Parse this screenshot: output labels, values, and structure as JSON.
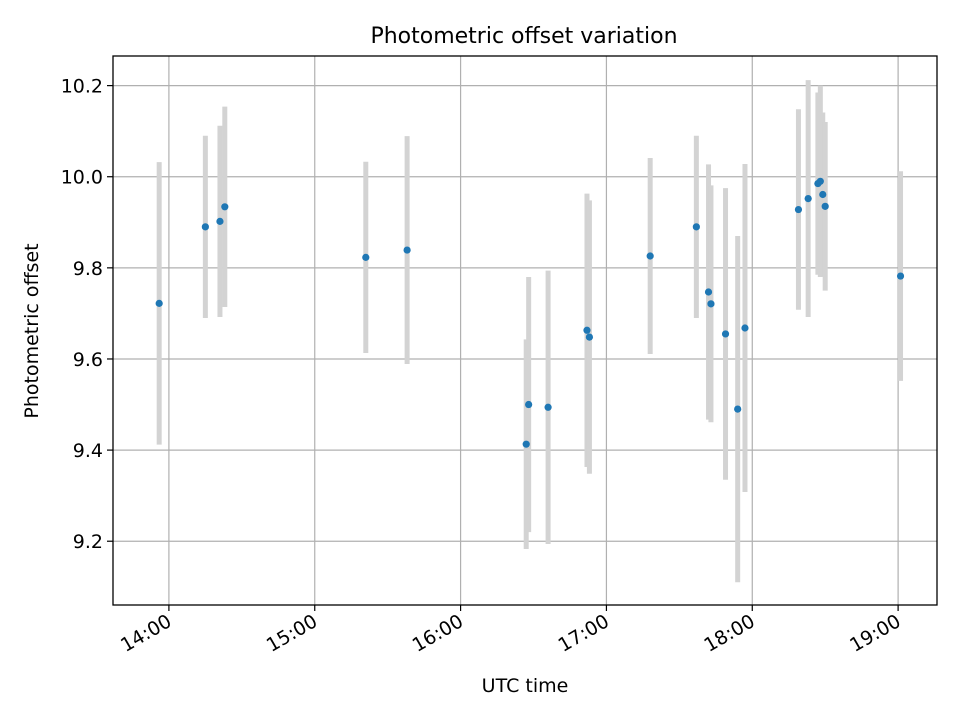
{
  "chart_data": {
    "type": "scatter",
    "title": "Photometric offset variation",
    "xlabel": "UTC time",
    "ylabel": "Photometric offset",
    "xlim": [
      "13:37",
      "19:16"
    ],
    "ylim": [
      9.06,
      10.265
    ],
    "x_ticks": [
      "14:00",
      "15:00",
      "16:00",
      "17:00",
      "18:00",
      "19:00"
    ],
    "y_ticks": [
      9.2,
      9.4,
      9.6,
      9.8,
      10.0,
      10.2
    ],
    "y_tick_labels": [
      "9.2",
      "9.4",
      "9.6",
      "9.8",
      "10.0",
      "10.2"
    ],
    "grid": true,
    "legend": false,
    "marker_color": "#1f77b4",
    "errorbar_color": "#d3d3d3",
    "points": [
      {
        "t": "13:56",
        "y": 9.722,
        "err": 0.31
      },
      {
        "t": "14:15",
        "y": 9.89,
        "err": 0.2
      },
      {
        "t": "14:21",
        "y": 9.902,
        "err": 0.21
      },
      {
        "t": "14:23",
        "y": 9.934,
        "err": 0.22
      },
      {
        "t": "15:21",
        "y": 9.823,
        "err": 0.21
      },
      {
        "t": "15:38",
        "y": 9.839,
        "err": 0.25
      },
      {
        "t": "16:27",
        "y": 9.413,
        "err": 0.23
      },
      {
        "t": "16:28",
        "y": 9.5,
        "err": 0.28
      },
      {
        "t": "16:36",
        "y": 9.494,
        "err": 0.3
      },
      {
        "t": "16:52",
        "y": 9.663,
        "err": 0.3
      },
      {
        "t": "16:53",
        "y": 9.648,
        "err": 0.3
      },
      {
        "t": "17:18",
        "y": 9.826,
        "err": 0.215
      },
      {
        "t": "17:37",
        "y": 9.89,
        "err": 0.2
      },
      {
        "t": "17:42",
        "y": 9.747,
        "err": 0.28
      },
      {
        "t": "17:43",
        "y": 9.721,
        "err": 0.26
      },
      {
        "t": "17:49",
        "y": 9.655,
        "err": 0.32
      },
      {
        "t": "17:54",
        "y": 9.49,
        "err": 0.38
      },
      {
        "t": "17:57",
        "y": 9.668,
        "err": 0.36
      },
      {
        "t": "18:19",
        "y": 9.928,
        "err": 0.22
      },
      {
        "t": "18:23",
        "y": 9.952,
        "err": 0.26
      },
      {
        "t": "18:27",
        "y": 9.985,
        "err": 0.2
      },
      {
        "t": "18:28",
        "y": 9.99,
        "err": 0.21
      },
      {
        "t": "18:29",
        "y": 9.961,
        "err": 0.18
      },
      {
        "t": "18:30",
        "y": 9.935,
        "err": 0.185
      },
      {
        "t": "19:01",
        "y": 9.782,
        "err": 0.23
      }
    ]
  }
}
